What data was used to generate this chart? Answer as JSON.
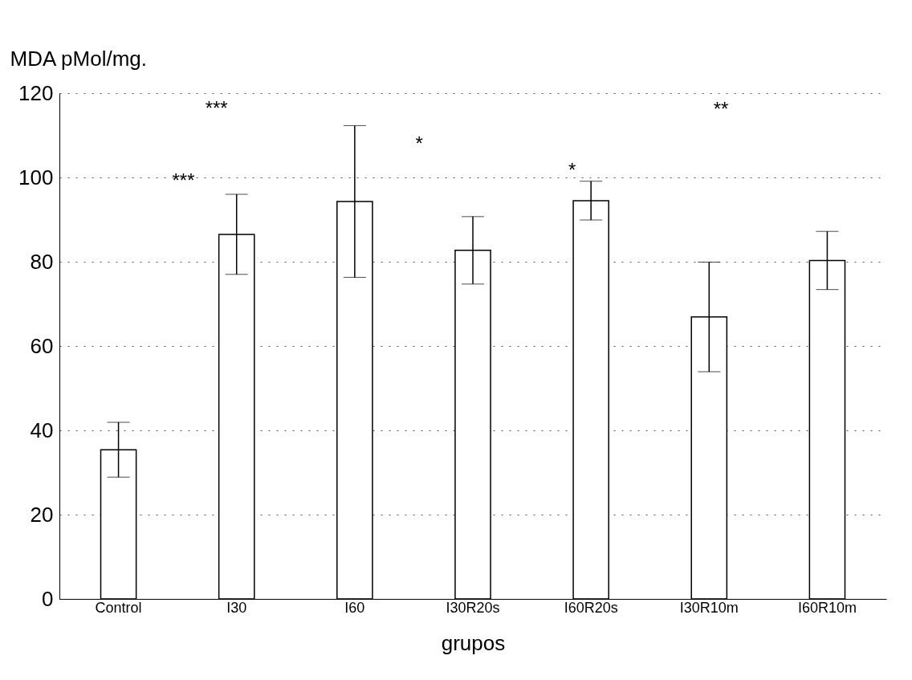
{
  "chart_data": {
    "type": "bar",
    "ylabel": "MDA pMol/mg.",
    "xlabel": "grupos",
    "categories": [
      "Control",
      "I30",
      "I60",
      "I30R20s",
      "I60R20s",
      "I30R10m",
      "I60R10m"
    ],
    "values": [
      35.4,
      86.5,
      94.3,
      82.7,
      94.5,
      66.9,
      80.3
    ],
    "errors": [
      6.5,
      9.5,
      18,
      8,
      4.6,
      13,
      6.9
    ],
    "color": "#ffffff",
    "ylim": [
      0,
      120
    ],
    "yticks": [
      0,
      20,
      40,
      60,
      80,
      100,
      120
    ],
    "grid": "y",
    "annotations": [
      "***",
      "***",
      "*",
      "*",
      "**"
    ]
  }
}
